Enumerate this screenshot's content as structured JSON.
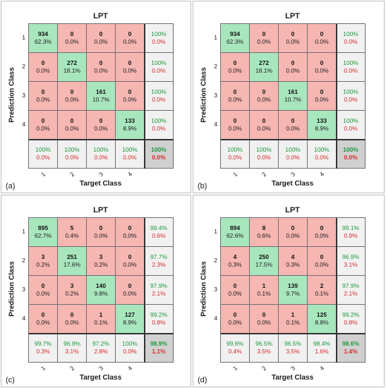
{
  "chart_data": [
    {
      "type": "confusion-matrix",
      "panel_label": "(a)",
      "title": "LPT",
      "xlabel": "Target Class",
      "ylabel": "Prediction Class",
      "classes": [
        "1",
        "2",
        "3",
        "4"
      ],
      "cells": [
        [
          [
            "934",
            "62.3%"
          ],
          [
            "0",
            "0.0%"
          ],
          [
            "0",
            "0.0%"
          ],
          [
            "0",
            "0.0%"
          ]
        ],
        [
          [
            "0",
            "0.0%"
          ],
          [
            "272",
            "18.1%"
          ],
          [
            "0",
            "0.0%"
          ],
          [
            "0",
            "0.0%"
          ]
        ],
        [
          [
            "0",
            "0.0%"
          ],
          [
            "0",
            "0.0%"
          ],
          [
            "161",
            "10.7%"
          ],
          [
            "0",
            "0.0%"
          ]
        ],
        [
          [
            "0",
            "0.0%"
          ],
          [
            "0",
            "0.0%"
          ],
          [
            "0",
            "0.0%"
          ],
          [
            "133",
            "8.9%"
          ]
        ]
      ],
      "row_summary": [
        [
          "100%",
          "0.0%"
        ],
        [
          "100%",
          "0.0%"
        ],
        [
          "100%",
          "0.0%"
        ],
        [
          "100%",
          "0.0%"
        ]
      ],
      "col_summary": [
        [
          "100%",
          "0.0%"
        ],
        [
          "100%",
          "0.0%"
        ],
        [
          "100%",
          "0.0%"
        ],
        [
          "100%",
          "0.0%"
        ]
      ],
      "overall": [
        "100%",
        "0.0%"
      ]
    },
    {
      "type": "confusion-matrix",
      "panel_label": "(b)",
      "title": "LPT",
      "xlabel": "Target Class",
      "ylabel": "Prediction Class",
      "classes": [
        "1",
        "2",
        "3",
        "4"
      ],
      "cells": [
        [
          [
            "934",
            "62.3%"
          ],
          [
            "0",
            "0.0%"
          ],
          [
            "0",
            "0.0%"
          ],
          [
            "0",
            "0.0%"
          ]
        ],
        [
          [
            "0",
            "0.0%"
          ],
          [
            "272",
            "18.1%"
          ],
          [
            "0",
            "0.0%"
          ],
          [
            "0",
            "0.0%"
          ]
        ],
        [
          [
            "0",
            "0.0%"
          ],
          [
            "0",
            "0.0%"
          ],
          [
            "161",
            "10.7%"
          ],
          [
            "0",
            "0.0%"
          ]
        ],
        [
          [
            "0",
            "0.0%"
          ],
          [
            "0",
            "0.0%"
          ],
          [
            "0",
            "0.0%"
          ],
          [
            "133",
            "8.9%"
          ]
        ]
      ],
      "row_summary": [
        [
          "100%",
          "0.0%"
        ],
        [
          "100%",
          "0.0%"
        ],
        [
          "100%",
          "0.0%"
        ],
        [
          "100%",
          "0.0%"
        ]
      ],
      "col_summary": [
        [
          "100%",
          "0.0%"
        ],
        [
          "100%",
          "0.0%"
        ],
        [
          "100%",
          "0.0%"
        ],
        [
          "100%",
          "0.0%"
        ]
      ],
      "overall": [
        "100%",
        "0.0%"
      ]
    },
    {
      "type": "confusion-matrix",
      "panel_label": "(c)",
      "title": "LPT",
      "xlabel": "Target Class",
      "ylabel": "Prediction Class",
      "classes": [
        "1",
        "2",
        "3",
        "4"
      ],
      "cells": [
        [
          [
            "895",
            "62.7%"
          ],
          [
            "5",
            "0.4%"
          ],
          [
            "0",
            "0.0%"
          ],
          [
            "0",
            "0.0%"
          ]
        ],
        [
          [
            "3",
            "0.2%"
          ],
          [
            "251",
            "17.6%"
          ],
          [
            "3",
            "0.2%"
          ],
          [
            "0",
            "0.0%"
          ]
        ],
        [
          [
            "0",
            "0.0%"
          ],
          [
            "3",
            "0.2%"
          ],
          [
            "140",
            "9.8%"
          ],
          [
            "0",
            "0.0%"
          ]
        ],
        [
          [
            "0",
            "0.0%"
          ],
          [
            "0",
            "0.0%"
          ],
          [
            "1",
            "0.1%"
          ],
          [
            "127",
            "8.9%"
          ]
        ]
      ],
      "row_summary": [
        [
          "99.4%",
          "0.6%"
        ],
        [
          "97.7%",
          "2.3%"
        ],
        [
          "97.9%",
          "2.1%"
        ],
        [
          "99.2%",
          "0.8%"
        ]
      ],
      "col_summary": [
        [
          "99.7%",
          "0.3%"
        ],
        [
          "96.9%",
          "3.1%"
        ],
        [
          "97.2%",
          "2.8%"
        ],
        [
          "100%",
          "0.0%"
        ]
      ],
      "overall": [
        "98.9%",
        "1.1%"
      ]
    },
    {
      "type": "confusion-matrix",
      "panel_label": "(d)",
      "title": "LPT",
      "xlabel": "Target Class",
      "ylabel": "Prediction Class",
      "classes": [
        "1",
        "2",
        "3",
        "4"
      ],
      "cells": [
        [
          [
            "894",
            "62.6%"
          ],
          [
            "8",
            "0.6%"
          ],
          [
            "0",
            "0.0%"
          ],
          [
            "0",
            "0.0%"
          ]
        ],
        [
          [
            "4",
            "0.3%"
          ],
          [
            "250",
            "17.5%"
          ],
          [
            "4",
            "0.3%"
          ],
          [
            "0",
            "0.0%"
          ]
        ],
        [
          [
            "0",
            "0.0%"
          ],
          [
            "1",
            "0.1%"
          ],
          [
            "139",
            "9.7%"
          ],
          [
            "2",
            "0.1%"
          ]
        ],
        [
          [
            "0",
            "0.0%"
          ],
          [
            "0",
            "0.0%"
          ],
          [
            "1",
            "0.1%"
          ],
          [
            "125",
            "8.8%"
          ]
        ]
      ],
      "row_summary": [
        [
          "99.1%",
          "0.9%"
        ],
        [
          "96.9%",
          "3.1%"
        ],
        [
          "97.9%",
          "2.1%"
        ],
        [
          "99.2%",
          "0.8%"
        ]
      ],
      "col_summary": [
        [
          "99.6%",
          "0.4%"
        ],
        [
          "96.5%",
          "3.5%"
        ],
        [
          "96.5%",
          "3.5%"
        ],
        [
          "98.4%",
          "1.6%"
        ]
      ],
      "overall": [
        "98.6%",
        "1.4%"
      ]
    }
  ],
  "colors": {
    "diagonal": "#a8e6be",
    "off_diagonal": "#f6b6b1",
    "summary": "#f1f1f1",
    "overall": "#d0d0d0",
    "accuracy_text": "#1e9a3c",
    "error_text": "#d62b2b"
  }
}
